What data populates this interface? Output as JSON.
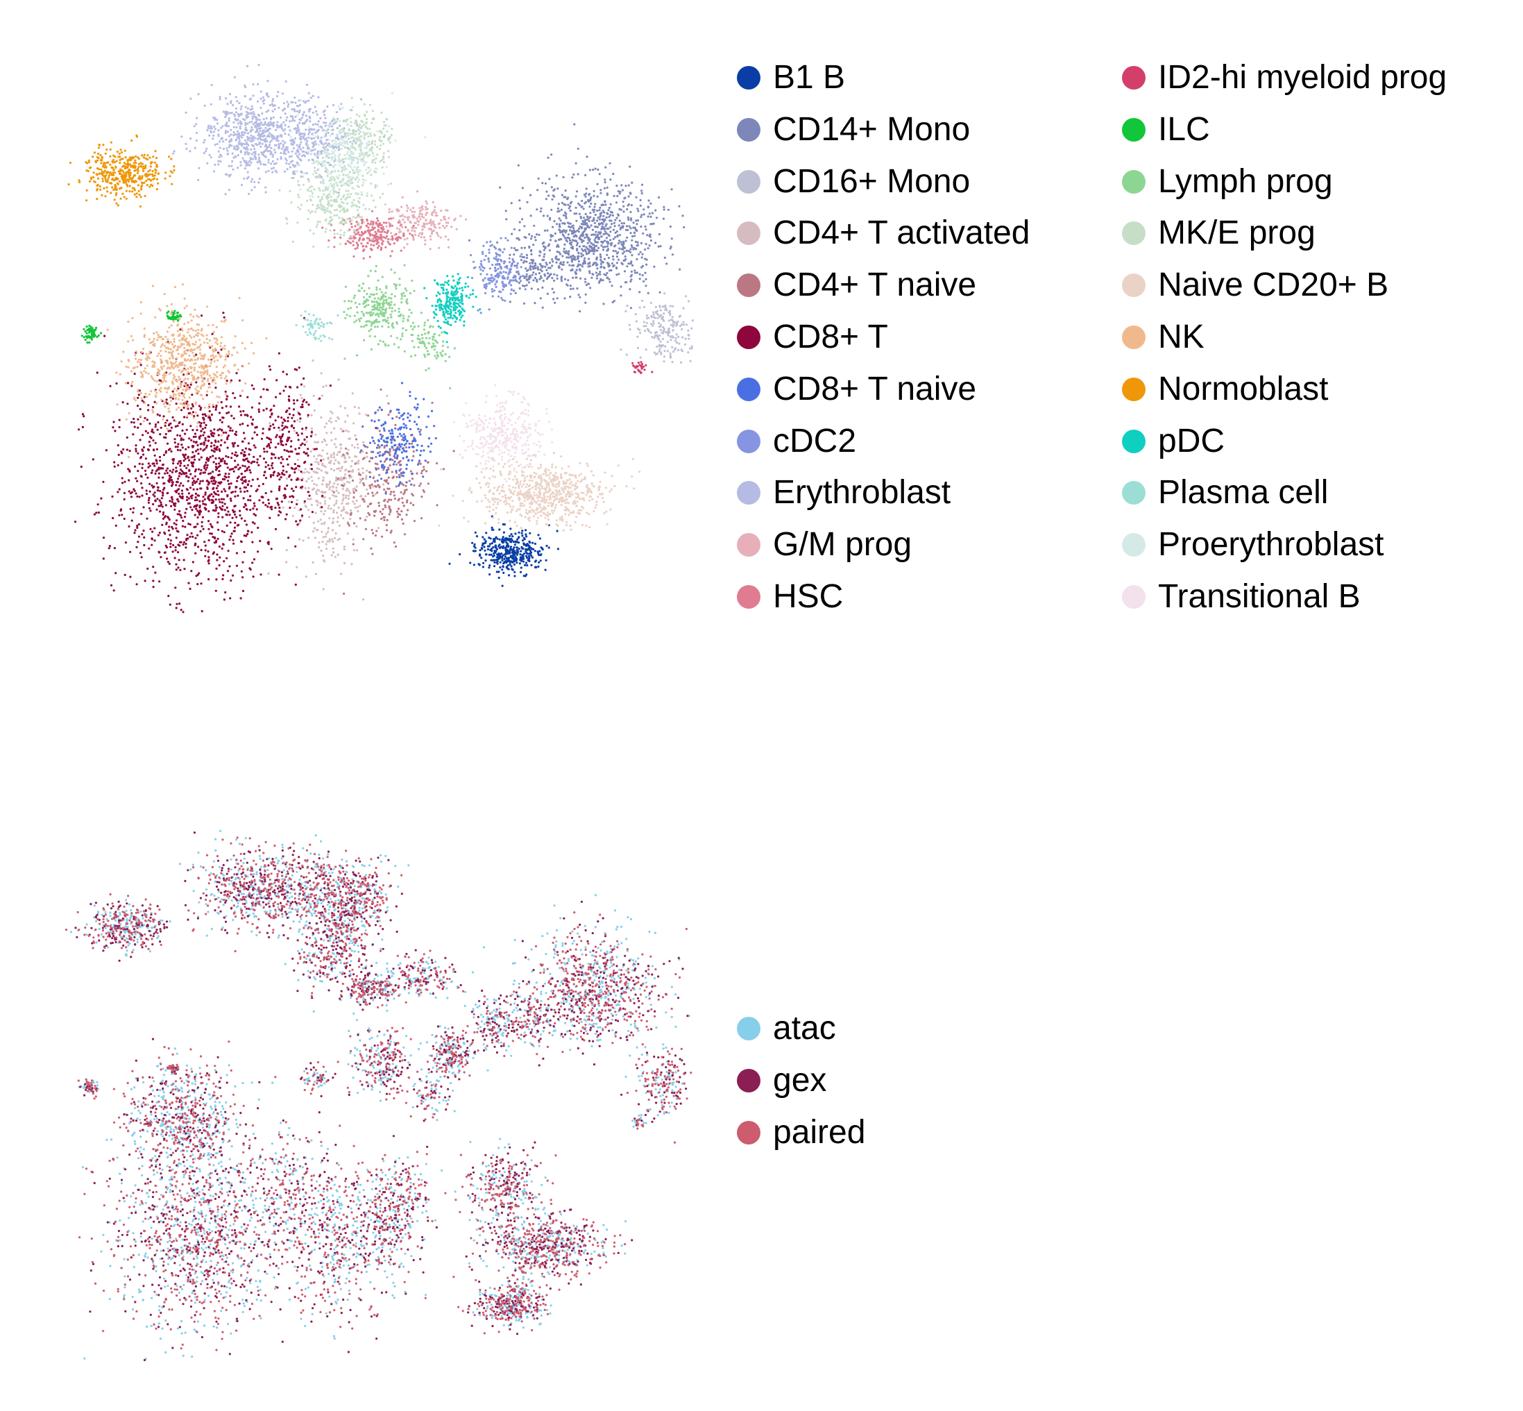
{
  "chart_data": [
    {
      "type": "scatter",
      "title": "",
      "xlabel": "",
      "ylabel": "",
      "axes_visible": false,
      "legend_placement": "right",
      "legend_columns": 2,
      "series": [
        {
          "name": "B1 B",
          "color": "#0a3ea6",
          "clusters": [
            [
              0.0,
              0.0
            ]
          ]
        },
        {
          "name": "CD14+ Mono",
          "color": "#7d87b9",
          "clusters": [
            [
              0.0,
              0.0
            ]
          ]
        },
        {
          "name": "CD16+ Mono",
          "color": "#bec1d4",
          "clusters": [
            [
              0.0,
              0.0
            ]
          ]
        },
        {
          "name": "CD4+ T activated",
          "color": "#d6bcc0",
          "clusters": [
            [
              0.0,
              0.0
            ]
          ]
        },
        {
          "name": "CD4+ T naive",
          "color": "#bb7784",
          "clusters": [
            [
              0.0,
              0.0
            ]
          ]
        },
        {
          "name": "CD8+ T",
          "color": "#8e063b",
          "clusters": [
            [
              0.0,
              0.0
            ]
          ]
        },
        {
          "name": "CD8+ T naive",
          "color": "#4a6fe3",
          "clusters": [
            [
              0.0,
              0.0
            ]
          ]
        },
        {
          "name": "cDC2",
          "color": "#8595e1",
          "clusters": [
            [
              0.0,
              0.0
            ]
          ]
        },
        {
          "name": "Erythroblast",
          "color": "#b5bbe3",
          "clusters": [
            [
              0.0,
              0.0
            ]
          ]
        },
        {
          "name": "G/M prog",
          "color": "#e6afb9",
          "clusters": [
            [
              0.0,
              0.0
            ]
          ]
        },
        {
          "name": "HSC",
          "color": "#e07b91",
          "clusters": [
            [
              0.0,
              0.0
            ]
          ]
        },
        {
          "name": "ID2-hi myeloid prog",
          "color": "#d33f6a",
          "clusters": [
            [
              0.0,
              0.0
            ]
          ]
        },
        {
          "name": "ILC",
          "color": "#11c638",
          "clusters": [
            [
              0.0,
              0.0
            ]
          ]
        },
        {
          "name": "Lymph prog",
          "color": "#8dd593",
          "clusters": [
            [
              0.0,
              0.0
            ]
          ]
        },
        {
          "name": "MK/E prog",
          "color": "#c6dec7",
          "clusters": [
            [
              0.0,
              0.0
            ]
          ]
        },
        {
          "name": "Naive CD20+ B",
          "color": "#ead3c6",
          "clusters": [
            [
              0.0,
              0.0
            ]
          ]
        },
        {
          "name": "NK",
          "color": "#f0b98d",
          "clusters": [
            [
              0.0,
              0.0
            ]
          ]
        },
        {
          "name": "Normoblast",
          "color": "#ef9708",
          "clusters": [
            [
              0.0,
              0.0
            ]
          ]
        },
        {
          "name": "pDC",
          "color": "#0fcfc0",
          "clusters": [
            [
              0.0,
              0.0
            ]
          ]
        },
        {
          "name": "Plasma cell",
          "color": "#9cded6",
          "clusters": [
            [
              0.0,
              0.0
            ]
          ]
        },
        {
          "name": "Proerythroblast",
          "color": "#d5eae7",
          "clusters": [
            [
              0.0,
              0.0
            ]
          ]
        },
        {
          "name": "Transitional B",
          "color": "#f3e1eb",
          "clusters": [
            [
              0.0,
              0.0
            ]
          ]
        }
      ]
    },
    {
      "type": "scatter",
      "title": "",
      "xlabel": "",
      "ylabel": "",
      "axes_visible": false,
      "legend_placement": "right",
      "legend_columns": 1,
      "series": [
        {
          "name": "atac",
          "color": "#87ceeb",
          "clusters": [
            [
              0.0,
              0.0
            ]
          ]
        },
        {
          "name": "gex",
          "color": "#8b1e52",
          "clusters": [
            [
              0.0,
              0.0
            ]
          ]
        },
        {
          "name": "paired",
          "color": "#cd5c6e",
          "clusters": [
            [
              0.0,
              0.0
            ]
          ]
        }
      ]
    }
  ]
}
